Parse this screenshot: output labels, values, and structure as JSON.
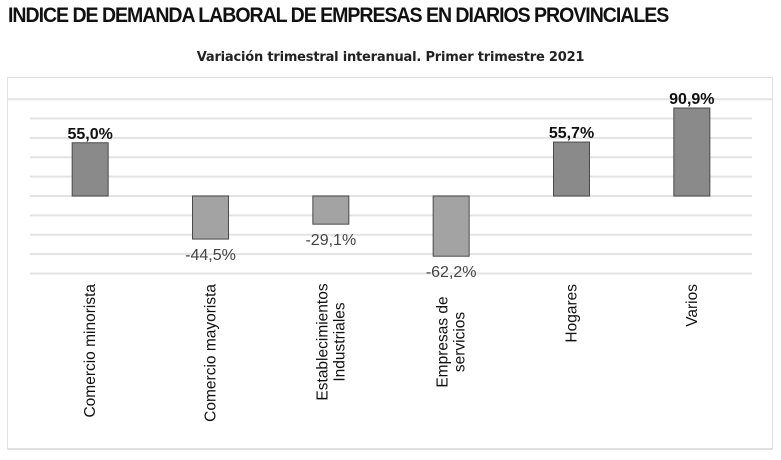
{
  "header": {
    "title": "INDICE DE DEMANDA LABORAL DE EMPRESAS EN DIARIOS PROVINCIALES"
  },
  "chart_data": {
    "type": "bar",
    "title": "INDICE DE DEMANDA LABORAL DE EMPRESAS EN DIARIOS PROVINCIALES",
    "subtitle": "Variación trimestral interanual. Primer trimestre 2021",
    "xlabel": "",
    "ylabel": "",
    "ylim": [
      -80,
      100
    ],
    "grid": true,
    "grid_step": 20,
    "legend": "none",
    "categories": [
      [
        "Comercio minorista"
      ],
      [
        "Comercio mayorista"
      ],
      [
        "Establecimientos",
        "Industriales"
      ],
      [
        "Empresas de",
        "servicios"
      ],
      [
        "Hogares"
      ],
      [
        "Varios"
      ]
    ],
    "values": [
      55.0,
      -44.5,
      -29.1,
      -62.2,
      55.7,
      90.9
    ],
    "data_labels": [
      "55,0%",
      "-44,5%",
      "-29,1%",
      "-62,2%",
      "55,7%",
      "90,9%"
    ],
    "colors": {
      "bar_positive": "#8a8a8a",
      "bar_negative": "#a3a3a3",
      "bar_stroke": "#4a4a4a",
      "grid": "#e3e3e3",
      "label_positive": "#111111",
      "label_negative": "#444444"
    }
  }
}
